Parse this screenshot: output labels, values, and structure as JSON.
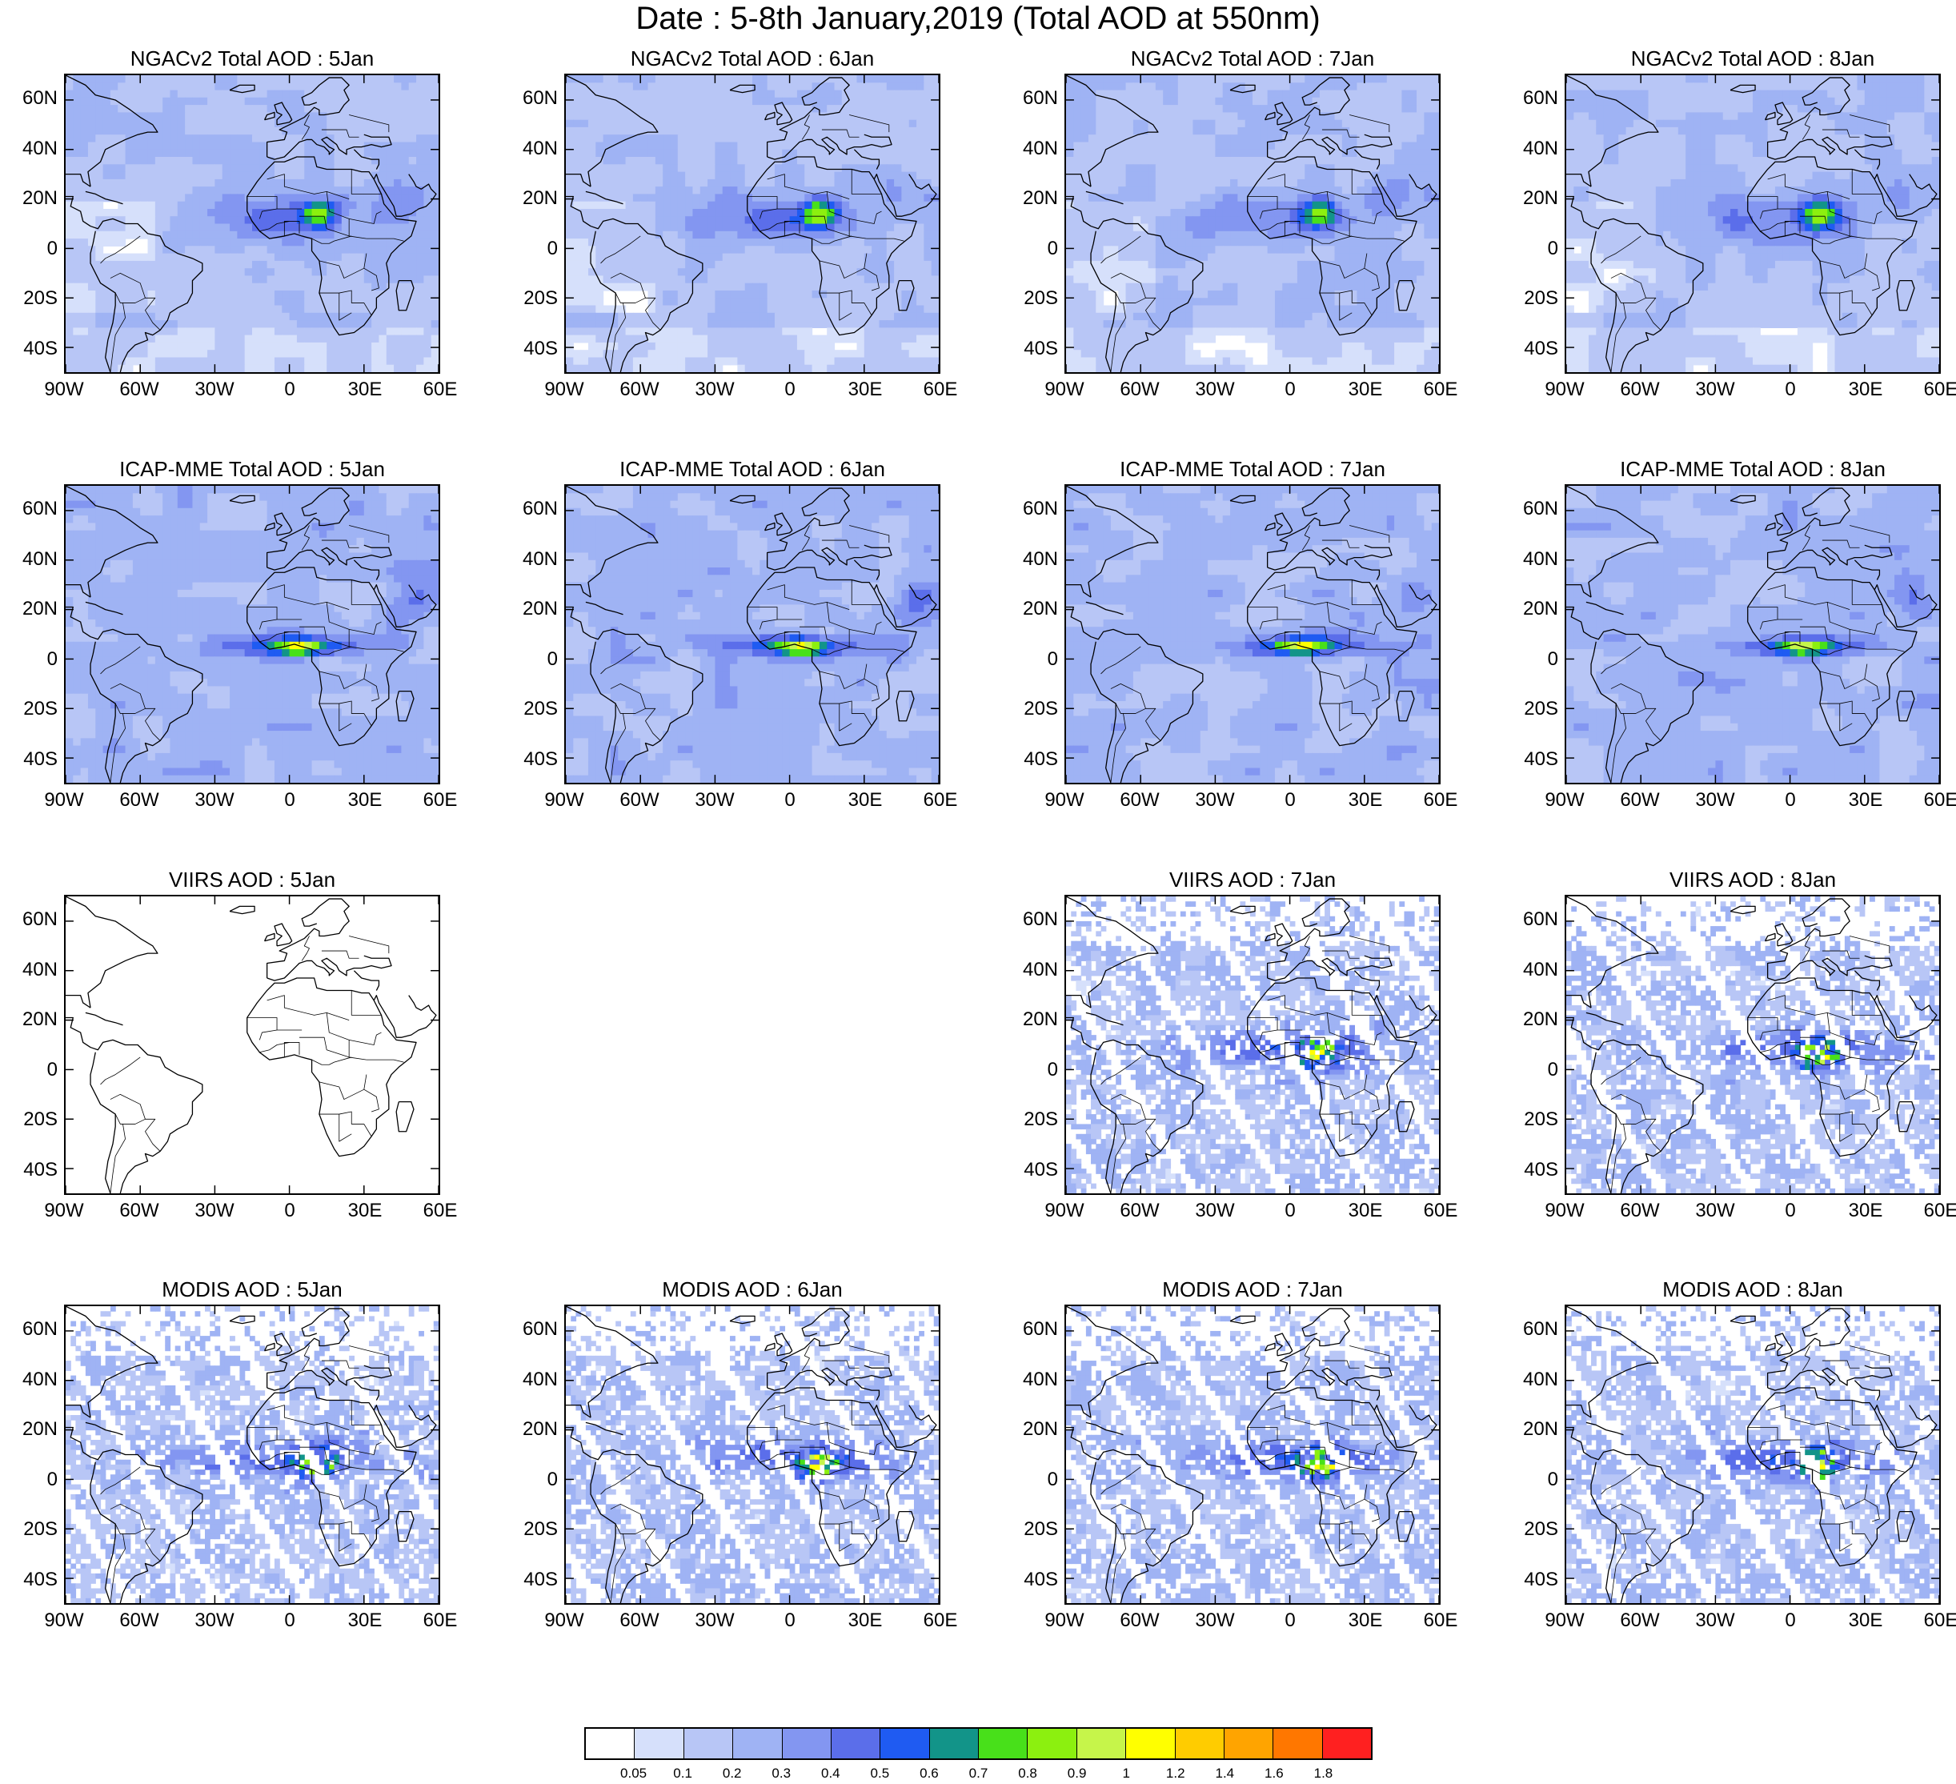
{
  "title": "Date : 5-8th January,2019 (Total AOD at 550nm)",
  "rows": [
    {
      "style": "model",
      "panels": [
        {
          "title": "NGACv2 Total AOD : 5Jan"
        },
        {
          "title": "NGACv2 Total AOD : 6Jan"
        },
        {
          "title": "NGACv2 Total AOD : 7Jan"
        },
        {
          "title": "NGACv2 Total AOD : 8Jan"
        }
      ]
    },
    {
      "style": "ensemble",
      "panels": [
        {
          "title": "ICAP-MME Total AOD : 5Jan"
        },
        {
          "title": "ICAP-MME Total AOD : 6Jan"
        },
        {
          "title": "ICAP-MME Total AOD : 7Jan"
        },
        {
          "title": "ICAP-MME Total AOD : 8Jan"
        }
      ]
    },
    {
      "style": "satellite",
      "panels": [
        {
          "title": "VIIRS AOD : 5Jan",
          "empty_data": true
        },
        null,
        {
          "title": "VIIRS AOD : 7Jan"
        },
        {
          "title": "VIIRS AOD : 8Jan"
        }
      ]
    },
    {
      "style": "satellite",
      "panels": [
        {
          "title": "MODIS AOD : 5Jan"
        },
        {
          "title": "MODIS AOD : 6Jan"
        },
        {
          "title": "MODIS AOD : 7Jan"
        },
        {
          "title": "MODIS AOD : 8Jan"
        }
      ]
    }
  ],
  "lat_labels": [
    "60N",
    "40N",
    "20N",
    "0",
    "20S",
    "40S"
  ],
  "lon_labels": [
    "90W",
    "60W",
    "30W",
    "0",
    "30E",
    "60E"
  ],
  "colorbar": {
    "colors": [
      "#ffffff",
      "#d6e0fb",
      "#b8c6f6",
      "#9fb3f4",
      "#8396f1",
      "#5b6eea",
      "#1f5bf2",
      "#129489",
      "#48e01a",
      "#8cf00f",
      "#c6f54a",
      "#ffff00",
      "#ffcc00",
      "#ffa400",
      "#ff7700",
      "#ff2020"
    ],
    "labels": [
      "0.05",
      "0.1",
      "0.2",
      "0.3",
      "0.4",
      "0.5",
      "0.6",
      "0.7",
      "0.8",
      "0.9",
      "1",
      "1.2",
      "1.4",
      "1.6",
      "1.8"
    ]
  }
}
